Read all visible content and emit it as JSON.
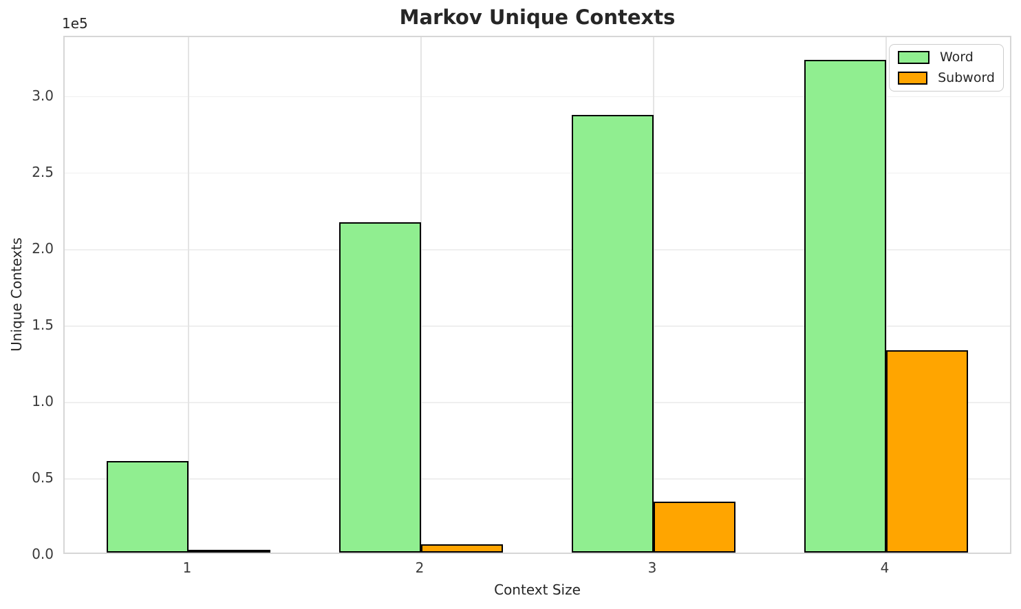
{
  "figure": {
    "title": "Markov Unique Contexts",
    "y_offset_text": "1e5"
  },
  "chart_data": {
    "type": "bar",
    "title": "Markov Unique Contexts",
    "xlabel": "Context Size",
    "ylabel": "Unique Contexts",
    "categories": [
      "1",
      "2",
      "3",
      "4"
    ],
    "series": [
      {
        "name": "Word",
        "color": "#90EE90",
        "values": [
          60000,
          216000,
          286500,
          322200
        ]
      },
      {
        "name": "Subword",
        "color": "#FFA500",
        "values": [
          1300,
          5500,
          33400,
          132300
        ]
      }
    ],
    "bar_edge_color": "#000000",
    "ylim": [
      0,
      339000
    ],
    "yticks": [
      0,
      50000,
      100000,
      150000,
      200000,
      250000,
      300000
    ],
    "ytick_labels": [
      "0.0",
      "0.5",
      "1.0",
      "1.5",
      "2.0",
      "2.5",
      "3.0"
    ],
    "y_offset_text": "1e5",
    "grid": true,
    "legend_position": "upper right"
  }
}
